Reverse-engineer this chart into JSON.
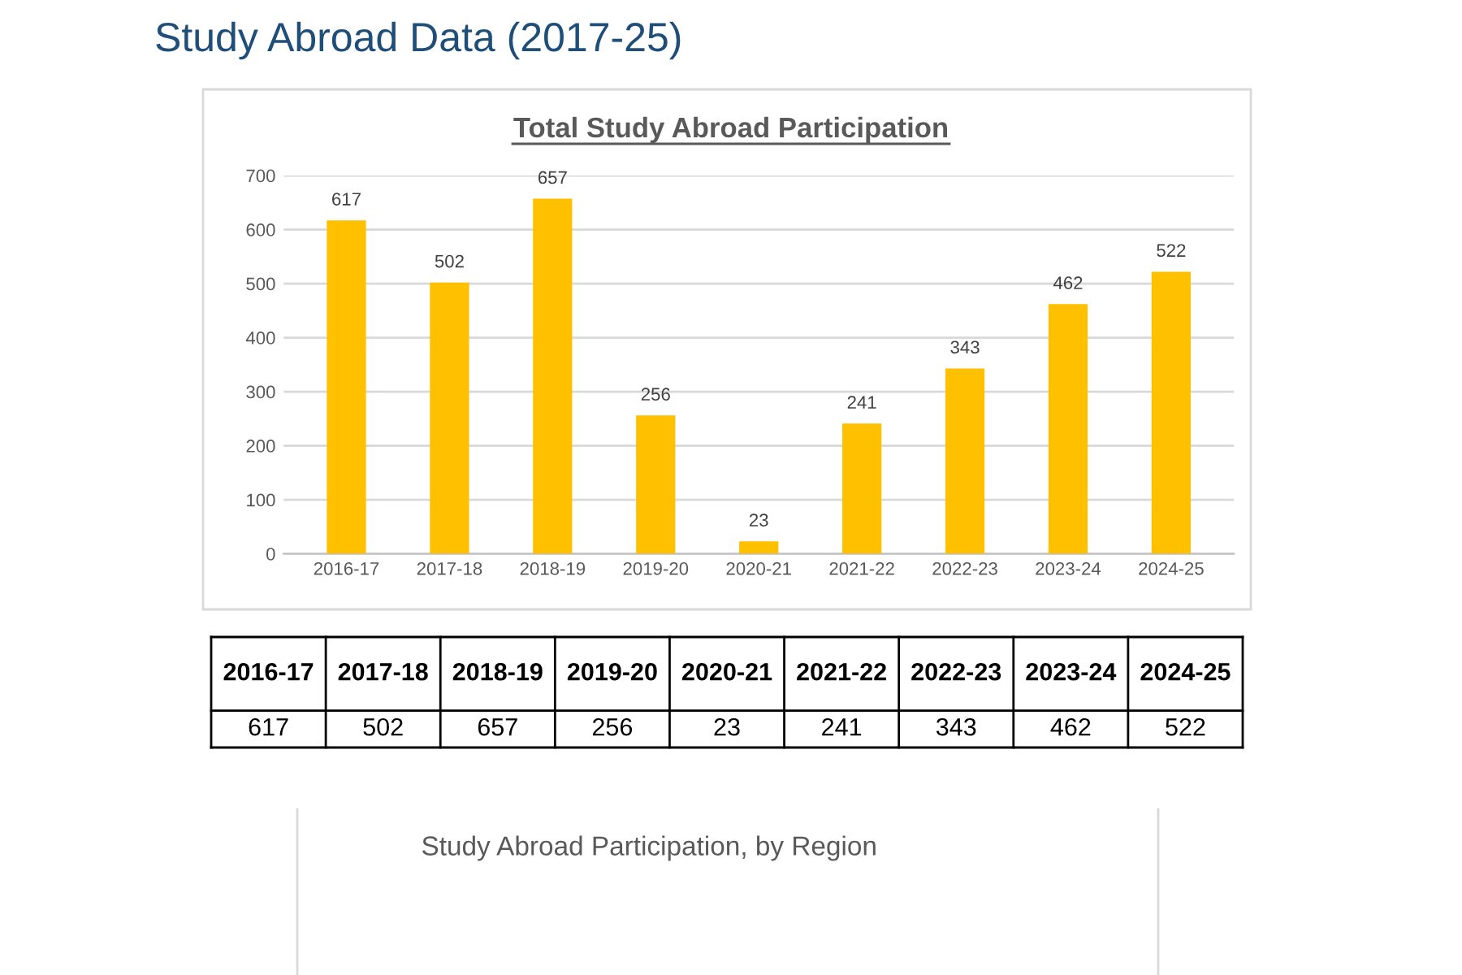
{
  "chart_data": [
    {
      "type": "bar",
      "title": "Total Study Abroad Participation",
      "categories": [
        "2016-17",
        "2017-18",
        "2018-19",
        "2019-20",
        "2020-21",
        "2021-22",
        "2022-23",
        "2023-24",
        "2024-25"
      ],
      "values": [
        617,
        502,
        657,
        256,
        23,
        241,
        343,
        462,
        522
      ],
      "color": "#ffc000",
      "ylim": [
        0,
        700
      ],
      "yticks": [
        0,
        100,
        200,
        300,
        400,
        500,
        600,
        700
      ],
      "grid": "y",
      "data_labels": true,
      "annotations": [
        "Study Abroad Data (2017-25)"
      ]
    },
    {
      "type": "other",
      "categories": [
        "2016-17",
        "2017-18",
        "2018-19",
        "2019-20",
        "2020-21",
        "2021-22",
        "2022-23",
        "2023-24",
        "2024-25"
      ],
      "values": [
        617,
        502,
        657,
        256,
        23,
        241,
        343,
        462,
        522
      ],
      "data_labels": true
    },
    {
      "type": "other",
      "title": "Study Abroad Participation, by Region"
    }
  ]
}
